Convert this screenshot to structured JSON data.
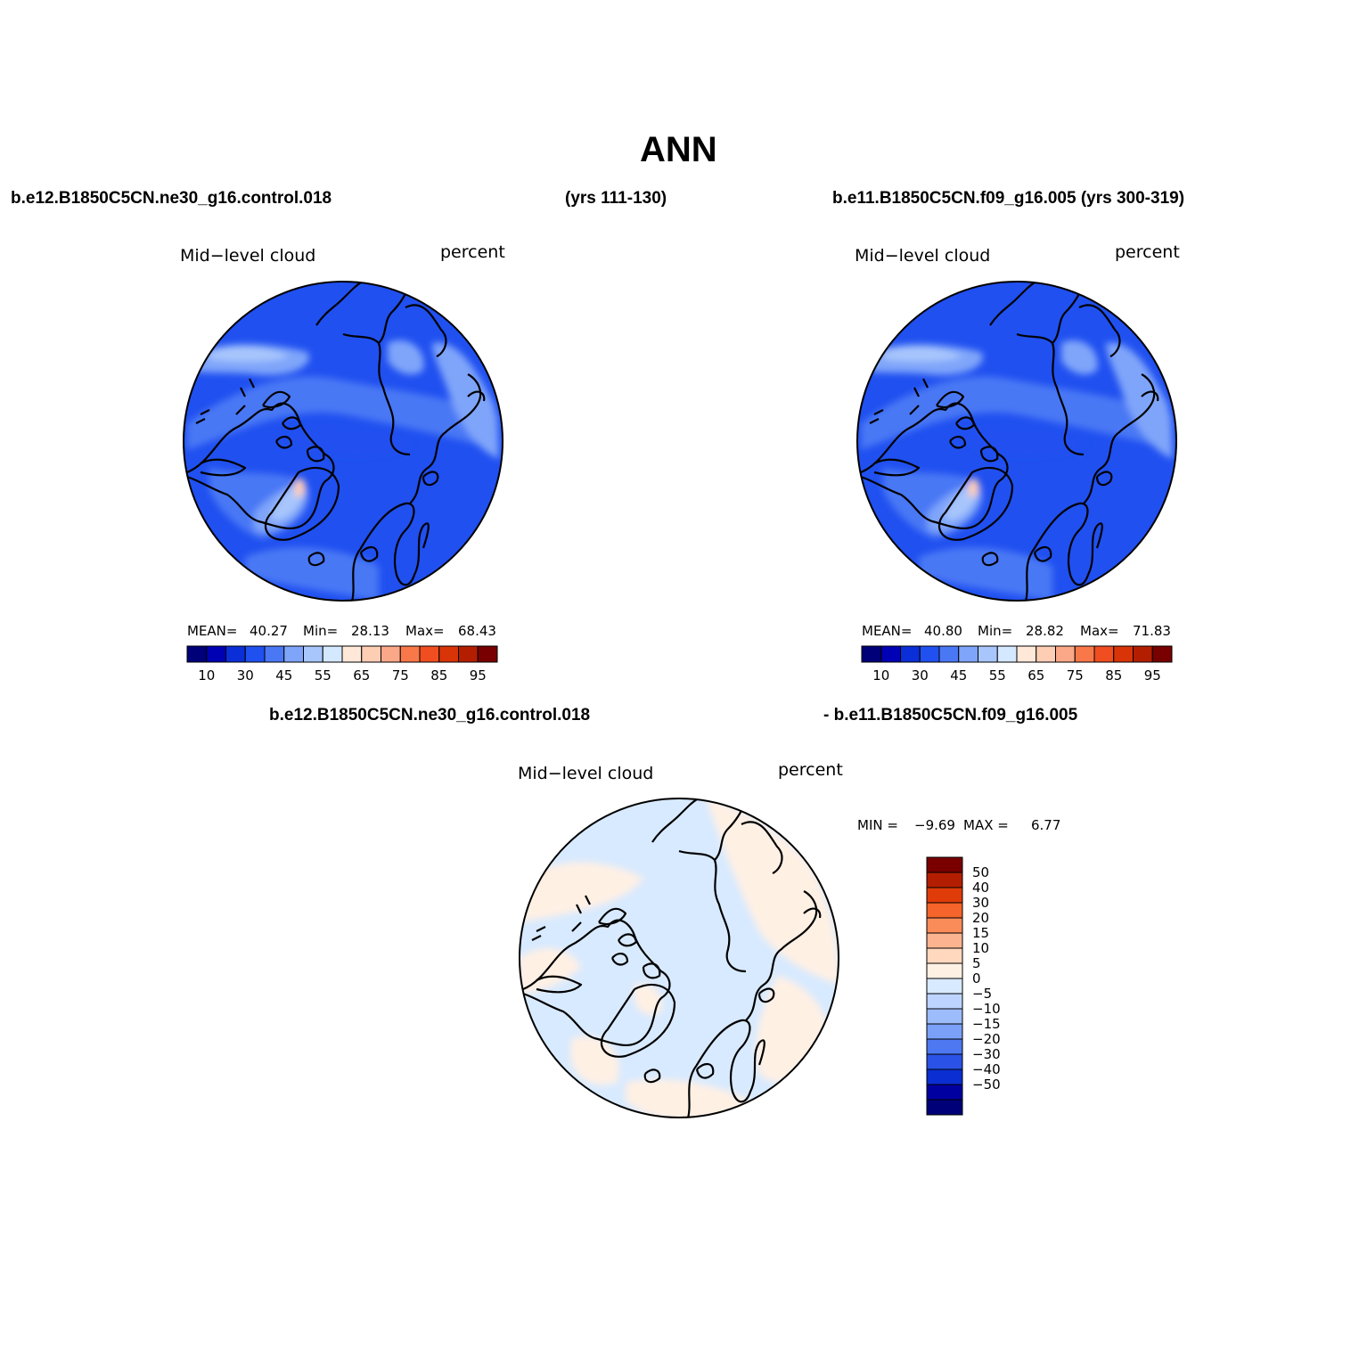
{
  "title": "ANN",
  "header": {
    "case1": "b.e12.B1850C5CN.ne30_g16.control.018",
    "yrs1": "(yrs 111-130)",
    "case2": "b.e11.B1850C5CN.f09_g16.005 (yrs 300-319)",
    "diff_case1": "b.e12.B1850C5CN.ne30_g16.control.018",
    "diff_case2": "- b.e11.B1850C5CN.f09_g16.005"
  },
  "panels": [
    {
      "variable": "Mid−level cloud",
      "units": "percent",
      "stats": {
        "mean_label": "MEAN=",
        "mean": "40.27",
        "min_label": "Min=",
        "min": "28.13",
        "max_label": "Max=",
        "max": "68.43"
      }
    },
    {
      "variable": "Mid−level cloud",
      "units": "percent",
      "stats": {
        "mean_label": "MEAN=",
        "mean": "40.80",
        "min_label": "Min=",
        "min": "28.82",
        "max_label": "Max=",
        "max": "71.83"
      }
    },
    {
      "variable": "Mid−level cloud",
      "units": "percent",
      "stats": {
        "min_label": "MIN =",
        "min": "−9.69",
        "max_label": "MAX =",
        "max": "6.77"
      }
    }
  ],
  "colorbar_abs": {
    "colors": [
      "#000078",
      "#0000b4",
      "#0a2ed7",
      "#2050f0",
      "#4a78f5",
      "#7fa5fa",
      "#a8c6fc",
      "#d4e8ff",
      "#ffe8d8",
      "#fdcdb4",
      "#fba888",
      "#f8784a",
      "#f04e20",
      "#d93408",
      "#b41e00",
      "#780000"
    ],
    "labels": [
      "10",
      "30",
      "45",
      "55",
      "65",
      "75",
      "85",
      "95"
    ]
  },
  "colorbar_diff": {
    "colors": [
      "#7a0000",
      "#b41e00",
      "#e03c0a",
      "#f5642a",
      "#fa8c5a",
      "#fcb490",
      "#ffd8be",
      "#fff0e4",
      "#d8eaff",
      "#bcd4ff",
      "#9cbcfc",
      "#7aa0f8",
      "#4d78f2",
      "#2a52e6",
      "#0a2ed2",
      "#0000a0",
      "#000078"
    ],
    "labels": [
      "50",
      "40",
      "30",
      "20",
      "15",
      "10",
      "5",
      "0",
      "−5",
      "−10",
      "−15",
      "−20",
      "−30",
      "−40",
      "−50"
    ]
  }
}
